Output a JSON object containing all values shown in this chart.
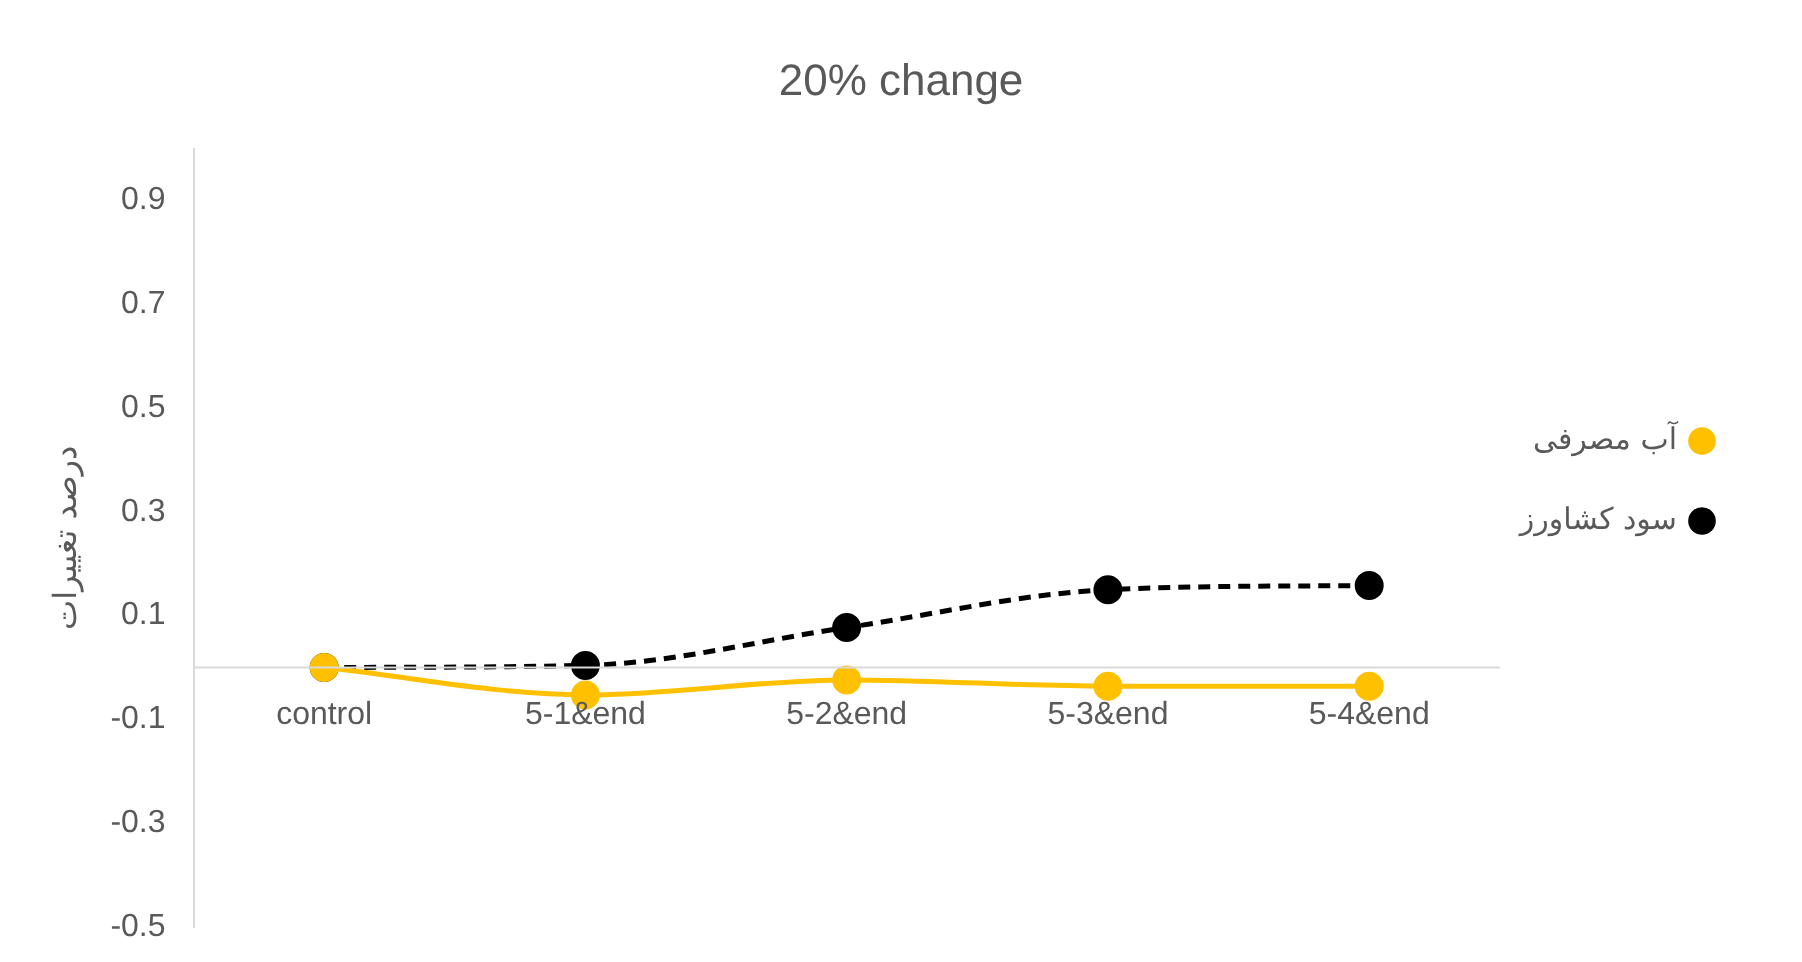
{
  "chart_data": {
    "type": "line",
    "title": "20% change",
    "ylabel": "درصد تغییرات",
    "categories": [
      "control",
      "5-1&end",
      "5-2&end",
      "5-3&end",
      "5-4&end"
    ],
    "series": [
      {
        "name": "آب مصرفی",
        "color": "#ffc000",
        "values": [
          0,
          -0.053,
          -0.024,
          -0.036,
          -0.036
        ],
        "line_style": "solid"
      },
      {
        "name": "سود کشاورز",
        "color": "#000000",
        "values": [
          0,
          0.004,
          0.077,
          0.15,
          0.158
        ],
        "line_style": "dashed"
      }
    ],
    "ylim": [
      -0.5,
      1.0
    ],
    "yticks": [
      -0.5,
      -0.3,
      -0.1,
      0.1,
      0.3,
      0.5,
      0.7,
      0.9
    ],
    "grid": false,
    "legend": "right",
    "marker": "circle"
  }
}
